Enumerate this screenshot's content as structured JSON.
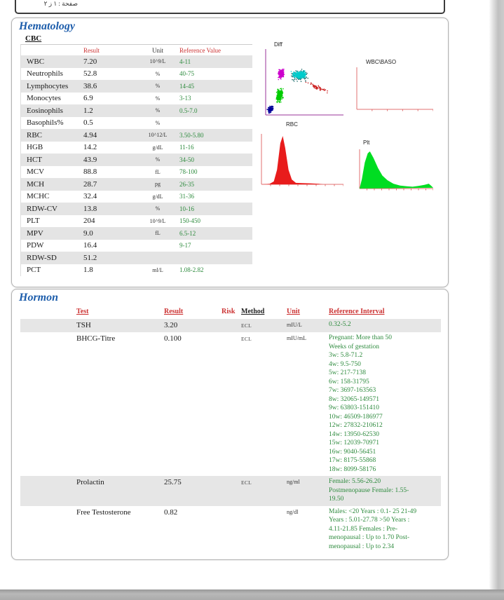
{
  "page": {
    "header_text": "صفحة : ١ ز ٢"
  },
  "hematology": {
    "title": "Hematology",
    "subtitle": "CBC",
    "columns": {
      "result": "Result",
      "unit": "Unit",
      "reference": "Reference Value"
    },
    "rows": [
      {
        "name": "WBC",
        "result": "7.20",
        "unit": "10^9/L",
        "reference": "4-11"
      },
      {
        "name": "Neutrophils",
        "result": "52.8",
        "unit": "%",
        "reference": "40-75"
      },
      {
        "name": "Lymphocytes",
        "result": "38.6",
        "unit": "%",
        "reference": "14-45"
      },
      {
        "name": "Monocytes",
        "result": "6.9",
        "unit": "%",
        "reference": "3-13"
      },
      {
        "name": "Eosinophils",
        "result": "1.2",
        "unit": "%",
        "reference": "0.5-7.0"
      },
      {
        "name": "Basophils%",
        "result": "0.5",
        "unit": "%",
        "reference": ""
      },
      {
        "name": "RBC",
        "result": "4.94",
        "unit": "10^12/L",
        "reference": "3.50-5.80"
      },
      {
        "name": "HGB",
        "result": "14.2",
        "unit": "g/dL",
        "reference": "11-16"
      },
      {
        "name": "HCT",
        "result": "43.9",
        "unit": "%",
        "reference": "34-50"
      },
      {
        "name": "MCV",
        "result": "88.8",
        "unit": "fL",
        "reference": "78-100"
      },
      {
        "name": "MCH",
        "result": "28.7",
        "unit": "pg",
        "reference": "26-35"
      },
      {
        "name": "MCHC",
        "result": "32.4",
        "unit": "g/dL",
        "reference": "31-36"
      },
      {
        "name": "RDW-CV",
        "result": "13.8",
        "unit": "%",
        "reference": "10-16"
      },
      {
        "name": "PLT",
        "result": "204",
        "unit": "10^9/L",
        "reference": "150-450"
      },
      {
        "name": "MPV",
        "result": "9.0",
        "unit": "fL",
        "reference": "6.5-12"
      },
      {
        "name": "PDW",
        "result": "16.4",
        "unit": "",
        "reference": "9-17"
      },
      {
        "name": "RDW-SD",
        "result": "51.2",
        "unit": "",
        "reference": ""
      },
      {
        "name": "PCT",
        "result": "1.8",
        "unit": "ml/L",
        "reference": "1.08-2.82"
      }
    ]
  },
  "hormone": {
    "title": "Hormon",
    "columns": {
      "test": "Test",
      "result": "Result",
      "risk": "Risk",
      "method": "Method",
      "unit": "Unit",
      "reference": "Reference Interval"
    },
    "rows": [
      {
        "test": "TSH",
        "result": "3.20",
        "risk": "",
        "method": "ECL",
        "unit": "mIU/L",
        "reference": [
          "0.32-5.2"
        ]
      },
      {
        "test": "BHCG-Titre",
        "result": "0.100",
        "risk": "",
        "method": "ECL",
        "unit": "mIU/mL",
        "reference": [
          "Pregnant: More than 50",
          "Weeks of gestation",
          "3w: 5.8-71.2",
          "4w: 9.5-750",
          "5w: 217-7138",
          "6w: 158-31795",
          "7w: 3697-163563",
          "8w: 32065-149571",
          "9w: 63803-151410",
          "10w: 46509-186977",
          "12w: 27832-210612",
          "14w: 13950-62530",
          "15w: 12039-70971",
          "16w: 9040-56451",
          "17w: 8175-55868",
          "18w: 8099-58176"
        ]
      },
      {
        "test": "Prolactin",
        "result": "25.75",
        "risk": "",
        "method": "ECL",
        "unit": "ng/ml",
        "reference": [
          "Female: 5.56-26.20",
          "Postmenopause Female: 1.55-",
          "19.50"
        ]
      },
      {
        "test": "Free Testosterone",
        "result": "0.82",
        "risk": "",
        "method": "",
        "unit": "ng/dl",
        "reference": [
          "Males: <20 Years : 0.1- 25 21-49",
          "Years : 5.01-27.78 >50 Years :",
          "4.11-21.85 Females : Pre-",
          "menopausal : Up to 1.70 Post-",
          "menopausal : Up to 2.34"
        ]
      }
    ]
  },
  "chart_data": [
    {
      "type": "scatter",
      "title": "Diff",
      "axis_color": "#993399",
      "legend_position": "none",
      "grid": false,
      "clusters": [
        {
          "name": "basophil-cluster",
          "color": "#000099",
          "cx": 0.06,
          "cy": 0.08,
          "rx": 0.05,
          "ry": 0.07,
          "n": 100,
          "tilt": 0.4
        },
        {
          "name": "lymphocyte-cluster",
          "color": "#00cc00",
          "cx": 0.18,
          "cy": 0.3,
          "rx": 0.06,
          "ry": 0.12,
          "n": 280,
          "tilt": 0.5
        },
        {
          "name": "monocyte-cluster",
          "color": "#cc00cc",
          "cx": 0.2,
          "cy": 0.63,
          "rx": 0.05,
          "ry": 0.09,
          "n": 220,
          "tilt": 0.3
        },
        {
          "name": "neutrophil-edge-speckle",
          "color": "#1a6b6b",
          "cx": 0.44,
          "cy": 0.6,
          "rx": 0.16,
          "ry": 0.11,
          "n": 110,
          "tilt": 0
        },
        {
          "name": "neutrophil-cluster",
          "color": "#00cccc",
          "cx": 0.44,
          "cy": 0.61,
          "rx": 0.12,
          "ry": 0.07,
          "n": 340,
          "tilt": 0
        },
        {
          "name": "eosinophil-trail",
          "color": "#cc2222",
          "cx": 0.66,
          "cy": 0.42,
          "rx": 0.18,
          "ry": 0.04,
          "n": 60,
          "tilt": -0.45
        }
      ]
    },
    {
      "type": "axes",
      "title": "WBC\\BASO",
      "axis_color": "#e07070",
      "x_ticks": 5,
      "grid": false
    },
    {
      "type": "area",
      "title": "RBC",
      "axis_color": "#e07070",
      "fill_color": "#e81c1c",
      "x_ticks": 9,
      "grid": false,
      "points": [
        [
          0,
          0
        ],
        [
          0.1,
          0.01
        ],
        [
          0.15,
          0.06
        ],
        [
          0.19,
          0.3
        ],
        [
          0.23,
          0.85
        ],
        [
          0.26,
          1.0
        ],
        [
          0.29,
          0.75
        ],
        [
          0.33,
          0.3
        ],
        [
          0.37,
          0.1
        ],
        [
          0.42,
          0.03
        ],
        [
          0.5,
          0.025
        ],
        [
          0.6,
          0.02
        ],
        [
          0.7,
          0.01
        ],
        [
          0.75,
          0
        ]
      ]
    },
    {
      "type": "area",
      "title": "Plt",
      "axis_color": "#e07070",
      "fill_color": "#00dd22",
      "x_ticks": 10,
      "grid": false,
      "points": [
        [
          0,
          0
        ],
        [
          0.03,
          0.25
        ],
        [
          0.07,
          0.7
        ],
        [
          0.11,
          0.95
        ],
        [
          0.14,
          1.0
        ],
        [
          0.19,
          0.82
        ],
        [
          0.25,
          0.55
        ],
        [
          0.31,
          0.35
        ],
        [
          0.38,
          0.22
        ],
        [
          0.46,
          0.13
        ],
        [
          0.55,
          0.08
        ],
        [
          0.64,
          0.06
        ],
        [
          0.72,
          0.05
        ],
        [
          0.8,
          0.07
        ],
        [
          0.88,
          0.1
        ],
        [
          0.94,
          0.13
        ],
        [
          0.97,
          0.08
        ],
        [
          1.0,
          0.02
        ]
      ]
    }
  ]
}
